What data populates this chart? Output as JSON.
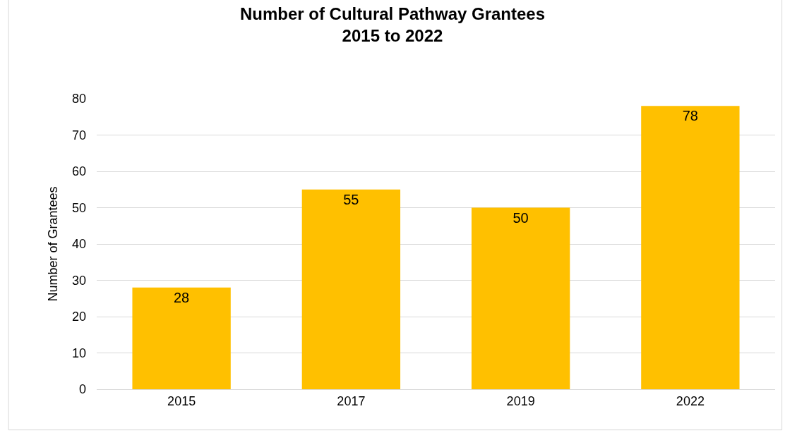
{
  "chart_data": {
    "type": "bar",
    "title": "Number of Cultural Pathway Grantees\n2015 to 2022",
    "ylabel": "Number of Grantees",
    "categories": [
      "2015",
      "2017",
      "2019",
      "2022"
    ],
    "values": [
      28,
      55,
      50,
      78
    ],
    "color": "#ffc000",
    "ylim": [
      0,
      80
    ],
    "yticks": [
      0,
      10,
      20,
      30,
      40,
      50,
      60,
      70,
      80
    ],
    "grid": "y",
    "data_labels": true
  }
}
